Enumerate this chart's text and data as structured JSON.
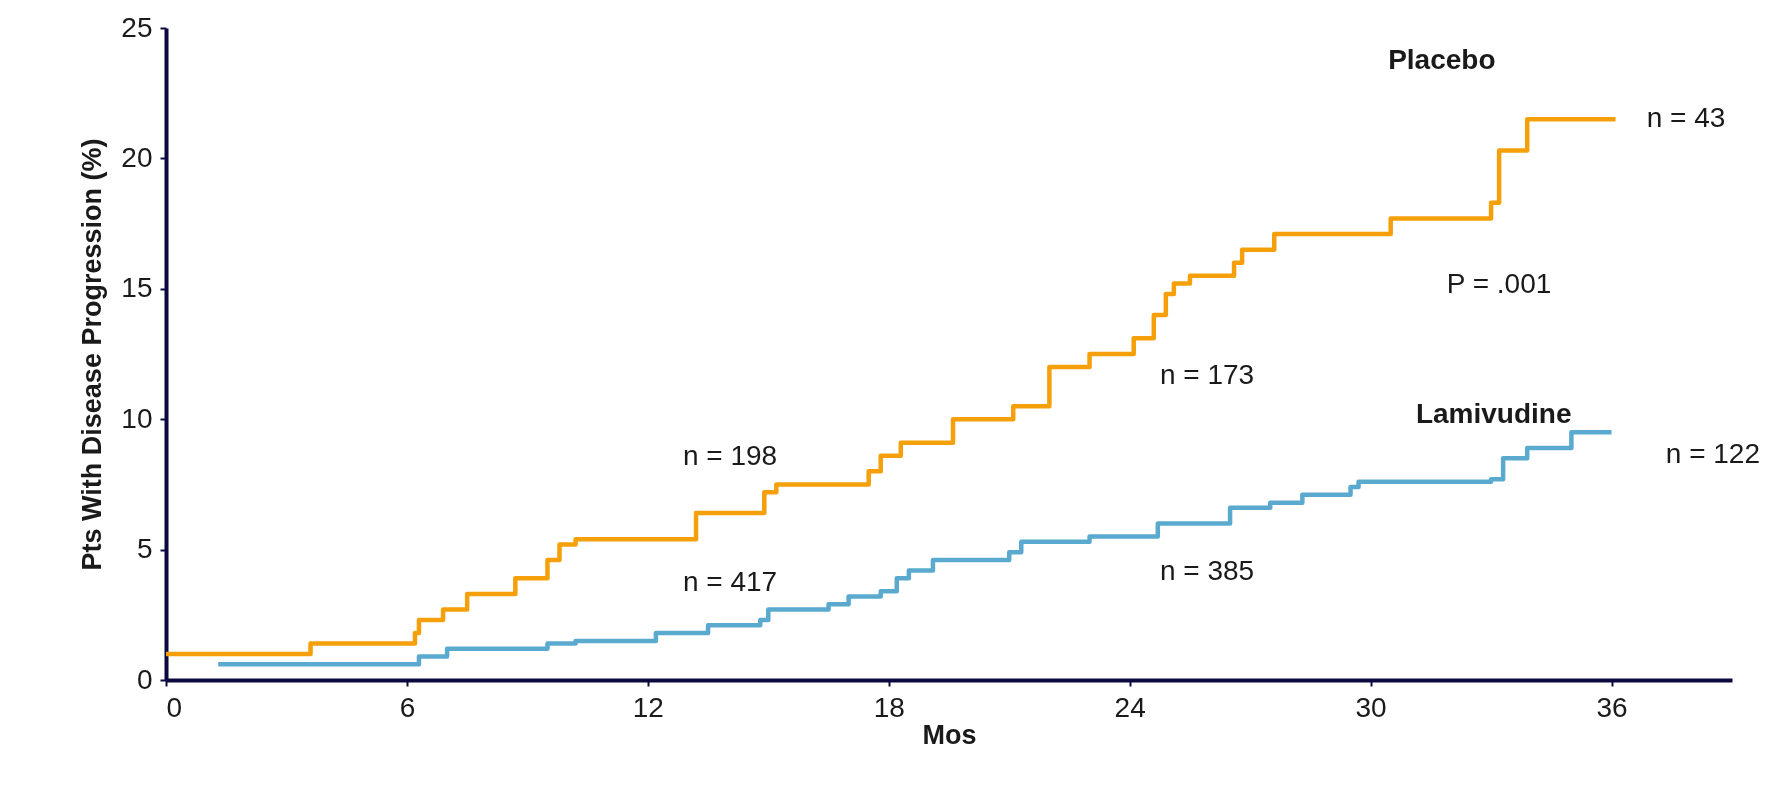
{
  "chart_data": {
    "type": "step",
    "xlabel": "Mos",
    "ylabel": "Pts With Disease Progression (%)",
    "xlim": [
      0,
      39
    ],
    "xticks": [
      0,
      6,
      12,
      18,
      24,
      30,
      36
    ],
    "ylim": [
      0,
      25
    ],
    "yticks": [
      0,
      5,
      10,
      15,
      20,
      25
    ],
    "grid": false,
    "legend": false,
    "line_style": "solid",
    "marker": "none",
    "series": [
      {
        "name": "Placebo",
        "color": "#f5a00a",
        "x": [
          0,
          3.6,
          6.2,
          6.3,
          6.9,
          7.5,
          8.7,
          9.5,
          9.8,
          10.2,
          13.2,
          14.9,
          15.2,
          17.5,
          17.8,
          18.3,
          19.6,
          21.1,
          22.0,
          23.0,
          24.1,
          24.6,
          24.9,
          25.1,
          25.5,
          26.6,
          26.8,
          27.6,
          30.5,
          33.0,
          33.2,
          33.9,
          36.1
        ],
        "values": [
          1.0,
          1.4,
          1.8,
          2.3,
          2.7,
          3.3,
          3.9,
          4.6,
          5.2,
          5.4,
          6.4,
          7.2,
          7.5,
          8.0,
          8.6,
          9.1,
          10.0,
          10.5,
          12.0,
          12.5,
          13.1,
          14.0,
          14.8,
          15.2,
          15.5,
          16.0,
          16.5,
          17.1,
          17.7,
          18.3,
          20.3,
          21.5,
          21.5
        ]
      },
      {
        "name": "Lamivudine",
        "color": "#5aaad0",
        "x": [
          1.3,
          6.3,
          7.0,
          9.5,
          10.2,
          12.2,
          13.5,
          14.8,
          15.0,
          16.5,
          17.0,
          17.8,
          18.2,
          18.5,
          19.1,
          21.0,
          21.3,
          23.0,
          24.7,
          26.5,
          27.5,
          28.3,
          29.5,
          29.7,
          33.0,
          33.3,
          33.9,
          35.0,
          36.0
        ],
        "values": [
          0.6,
          0.9,
          1.2,
          1.4,
          1.5,
          1.8,
          2.1,
          2.3,
          2.7,
          2.9,
          3.2,
          3.4,
          3.9,
          4.2,
          4.6,
          4.9,
          5.3,
          5.5,
          6.0,
          6.6,
          6.8,
          7.1,
          7.4,
          7.6,
          7.7,
          8.5,
          8.9,
          9.5,
          9.5
        ]
      }
    ],
    "annotations": [
      "n = 198",
      "n = 417",
      "n = 173",
      "n = 385",
      "n = 43",
      "n = 122",
      "P = .001"
    ]
  }
}
